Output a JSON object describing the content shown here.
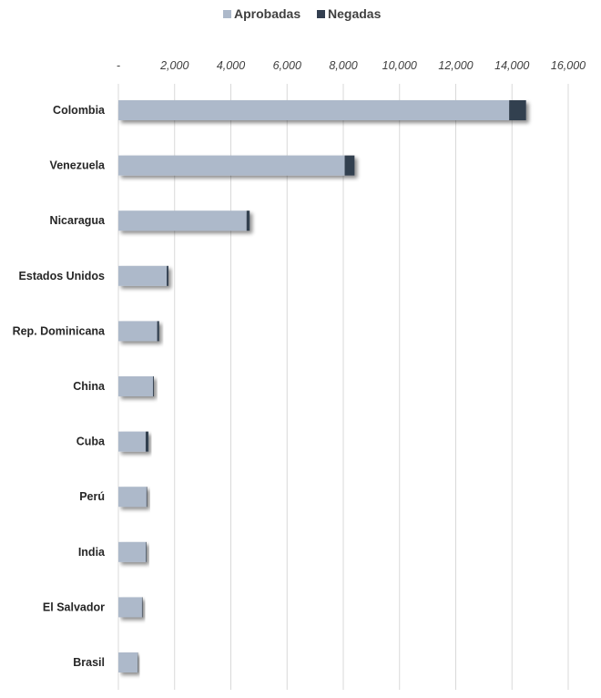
{
  "chart_data": {
    "type": "bar",
    "orientation": "horizontal",
    "stacked": true,
    "categories": [
      "Colombia",
      "Venezuela",
      "Nicaragua",
      "Estados Unidos",
      "Rep. Dominicana",
      "China",
      "Cuba",
      "Perú",
      "India",
      "El Salvador",
      "Brasil"
    ],
    "series": [
      {
        "name": "Aprobadas",
        "color": "#adb9ca",
        "values": [
          13900,
          8050,
          4560,
          1720,
          1380,
          1230,
          970,
          1000,
          980,
          840,
          680
        ]
      },
      {
        "name": "Negadas",
        "color": "#333f50",
        "values": [
          600,
          350,
          110,
          60,
          70,
          30,
          100,
          20,
          20,
          20,
          10
        ]
      }
    ],
    "xlim": [
      0,
      16000
    ],
    "x_ticks": [
      0,
      2000,
      4000,
      6000,
      8000,
      10000,
      12000,
      14000,
      16000
    ],
    "x_tick_labels": [
      "-",
      "2,000",
      "4,000",
      "6,000",
      "8,000",
      "10,000",
      "12,000",
      "14,000",
      "16,000"
    ],
    "title": "",
    "xlabel": "",
    "ylabel": "",
    "grid": true,
    "legend_position": "top",
    "tick_position": "top"
  }
}
